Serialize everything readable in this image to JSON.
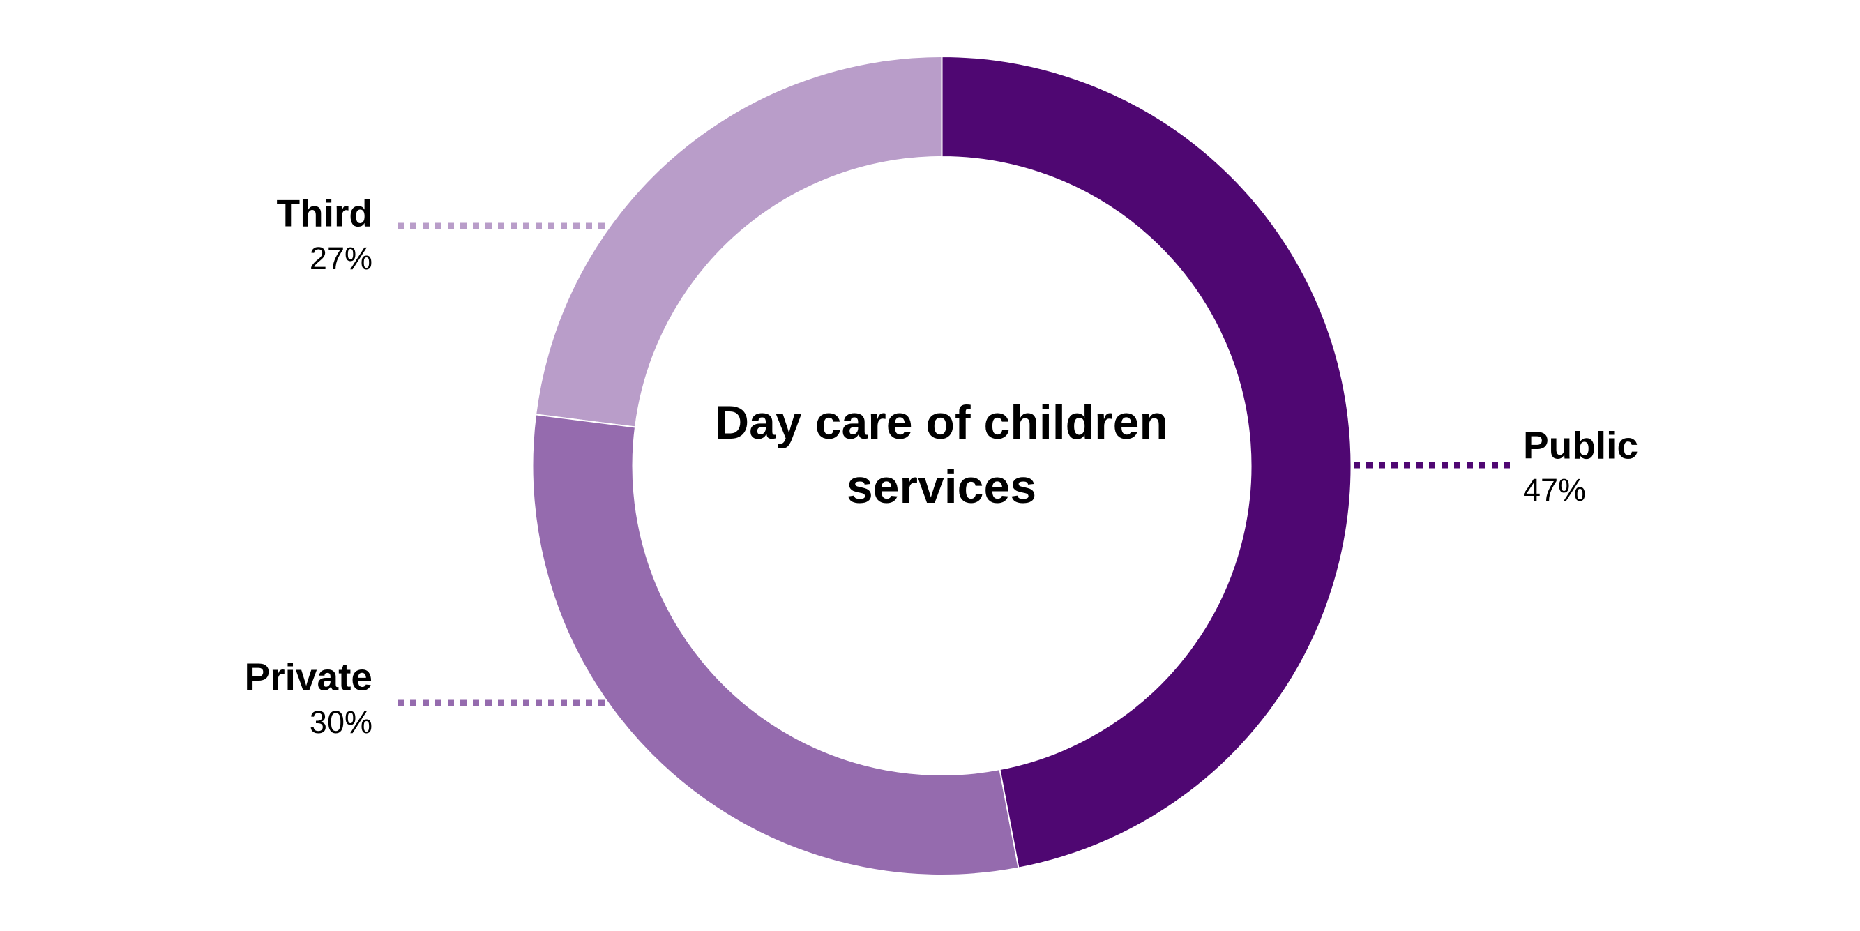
{
  "chart_data": {
    "type": "pie",
    "title": "Day care of children services",
    "categories": [
      "Public",
      "Private",
      "Third"
    ],
    "values": [
      47,
      30,
      27
    ],
    "value_labels": [
      "47%",
      "30%",
      "27%"
    ],
    "colors": [
      "#4f0772",
      "#956bae",
      "#b99dc9"
    ]
  }
}
